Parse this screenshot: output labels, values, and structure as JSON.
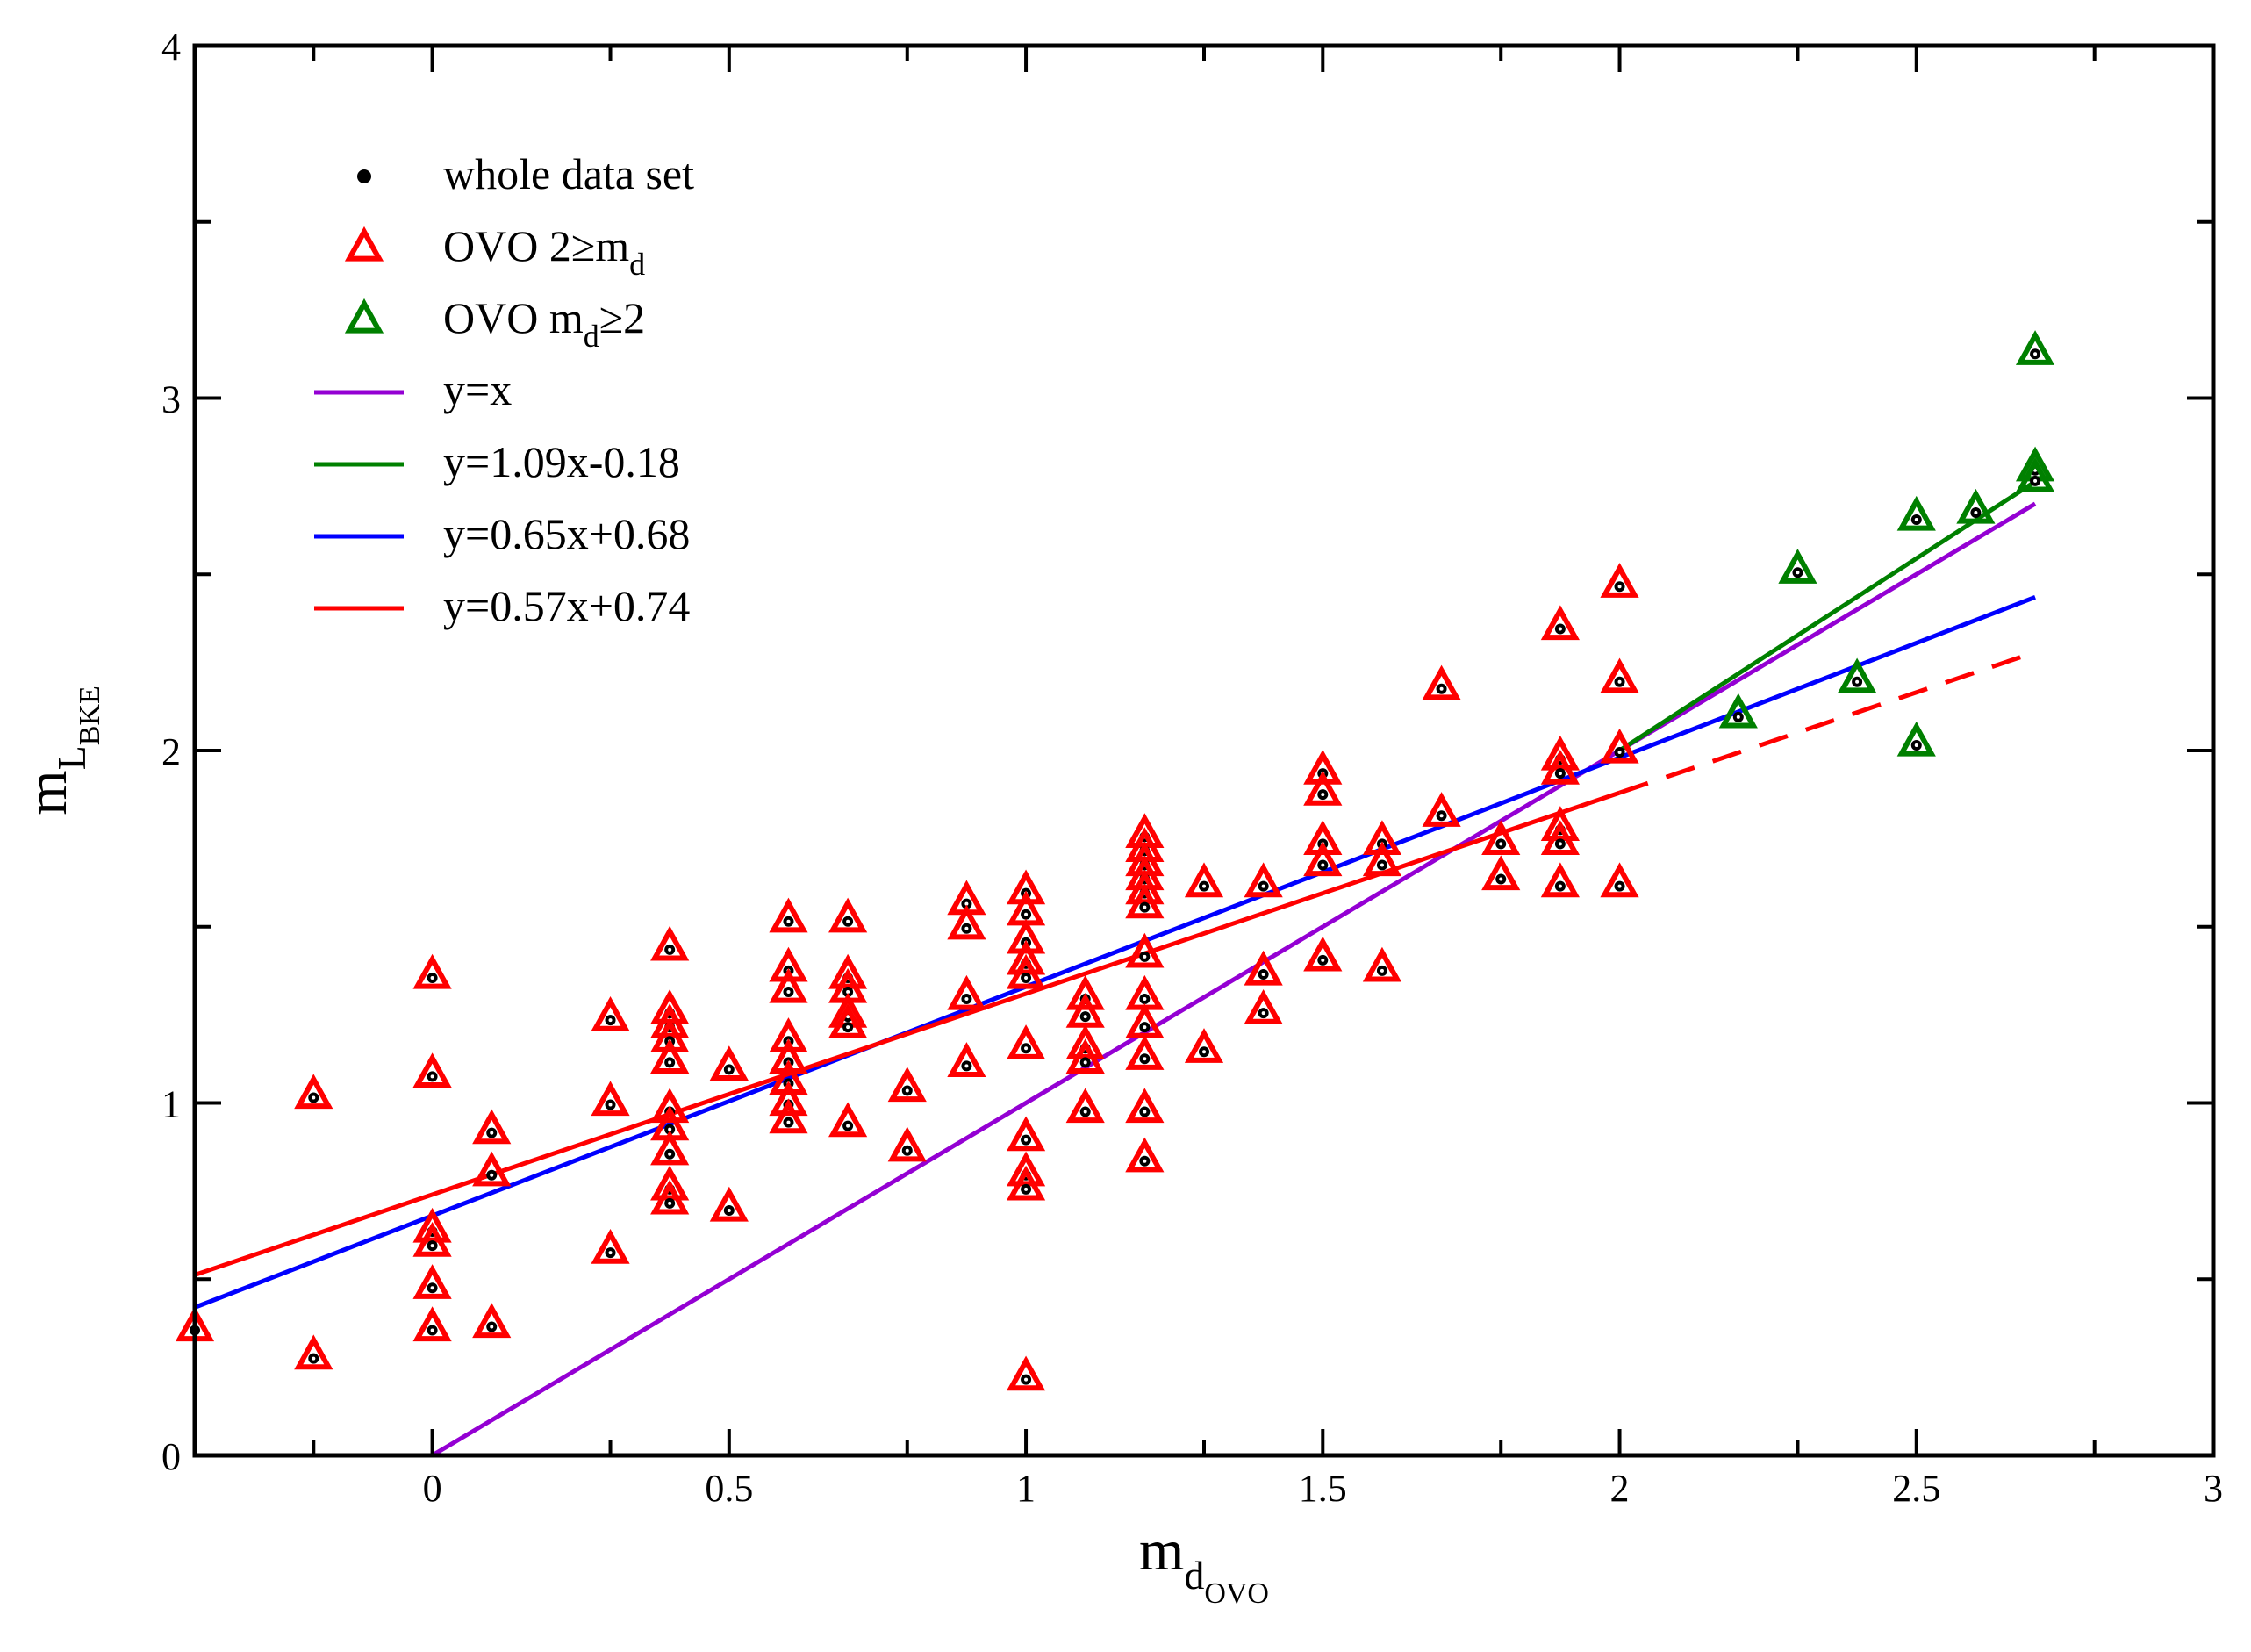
{
  "chart_data": {
    "type": "scatter",
    "title": "",
    "xlabel": {
      "base": "m",
      "sub": "d",
      "subsub": "OVO"
    },
    "ylabel": {
      "base": "m",
      "sub": "L",
      "subsub": "BKE"
    },
    "xlim": [
      -0.4,
      3.0
    ],
    "ylim": [
      0,
      4
    ],
    "x_ticks": [
      {
        "value": 0,
        "label": "0"
      },
      {
        "value": 0.5,
        "label": "0.5"
      },
      {
        "value": 1,
        "label": "1"
      },
      {
        "value": 1.5,
        "label": "1.5"
      },
      {
        "value": 2,
        "label": "2"
      },
      {
        "value": 2.5,
        "label": "2.5"
      },
      {
        "value": 3,
        "label": "3"
      }
    ],
    "x_minor_ticks": [
      -0.2,
      0.3,
      0.8,
      1.3,
      1.8,
      2.3,
      2.8
    ],
    "x_all_tick_step": 0.1,
    "y_ticks": [
      {
        "value": 0,
        "label": "0"
      },
      {
        "value": 1,
        "label": "1"
      },
      {
        "value": 2,
        "label": "2"
      },
      {
        "value": 3,
        "label": "3"
      },
      {
        "value": 4,
        "label": "4"
      }
    ],
    "y_minor_ticks": [
      0.5,
      1.5,
      2.5,
      3.5
    ],
    "grid": false,
    "legend_position": "top-left",
    "legend": [
      {
        "kind": "circle",
        "color": "#000000",
        "label": "whole data set"
      },
      {
        "kind": "triangle",
        "color": "#ff0000",
        "label": "OVO  2≥m",
        "sub": "d"
      },
      {
        "kind": "triangle",
        "color": "#008000",
        "label": "OVO  m",
        "sub": "d",
        "label_after": "≥2"
      },
      {
        "kind": "line",
        "color": "#9400d3",
        "label": "y=x"
      },
      {
        "kind": "line",
        "color": "#008000",
        "label": "y=1.09x-0.18"
      },
      {
        "kind": "line",
        "color": "#0000ff",
        "label": "y=0.65x+0.68"
      },
      {
        "kind": "line",
        "color": "#ff0000",
        "label": "y=0.57x+0.74"
      }
    ],
    "lines": [
      {
        "name": "y=x",
        "color": "#9400d3",
        "x_from": 0,
        "x_to": 2.7,
        "dashed": false
      },
      {
        "name": "y=1.09x-0.18",
        "color": "#008000",
        "x_from": 2.0,
        "x_to": 2.7,
        "dashed": false
      },
      {
        "name": "y=0.65x+0.68",
        "color": "#0000ff",
        "x_from": -0.4,
        "x_to": 2.7,
        "dashed": false
      },
      {
        "name": "y=0.57x+0.74",
        "color": "#ff0000",
        "x_from": -0.4,
        "x_to": 2.0,
        "dashed": false
      },
      {
        "name": "y=0.57x+0.74 (extrapolated)",
        "color": "#ff0000",
        "x_from": 2.0,
        "x_to": 2.7,
        "dashed": true
      }
    ],
    "series": [
      {
        "name": "OVO 2≥m_d",
        "marker": "triangle",
        "color": "#ff0000",
        "points": [
          [
            -0.4,
            0.36
          ],
          [
            -0.2,
            1.02
          ],
          [
            -0.2,
            0.28
          ],
          [
            0,
            1.36
          ],
          [
            0,
            1.08
          ],
          [
            0,
            0.64
          ],
          [
            0,
            0.6
          ],
          [
            0,
            0.48
          ],
          [
            0,
            0.36
          ],
          [
            0.1,
            0.92
          ],
          [
            0.1,
            0.8
          ],
          [
            0.1,
            0.37
          ],
          [
            0.3,
            1.24
          ],
          [
            0.3,
            1.0
          ],
          [
            0.3,
            0.58
          ],
          [
            0.4,
            1.44
          ],
          [
            0.4,
            1.26
          ],
          [
            0.4,
            1.22
          ],
          [
            0.4,
            1.18
          ],
          [
            0.4,
            1.12
          ],
          [
            0.4,
            0.98
          ],
          [
            0.4,
            0.93
          ],
          [
            0.4,
            0.86
          ],
          [
            0.4,
            0.76
          ],
          [
            0.4,
            0.72
          ],
          [
            0.5,
            1.1
          ],
          [
            0.5,
            0.7
          ],
          [
            0.6,
            1.52
          ],
          [
            0.6,
            1.38
          ],
          [
            0.6,
            1.32
          ],
          [
            0.6,
            1.18
          ],
          [
            0.6,
            1.12
          ],
          [
            0.6,
            1.06
          ],
          [
            0.6,
            1.0
          ],
          [
            0.6,
            0.95
          ],
          [
            0.7,
            1.52
          ],
          [
            0.7,
            1.36
          ],
          [
            0.7,
            1.32
          ],
          [
            0.7,
            1.25
          ],
          [
            0.7,
            1.22
          ],
          [
            0.7,
            0.94
          ],
          [
            0.8,
            1.04
          ],
          [
            0.8,
            0.87
          ],
          [
            0.9,
            1.57
          ],
          [
            0.9,
            1.5
          ],
          [
            0.9,
            1.3
          ],
          [
            0.9,
            1.11
          ],
          [
            1.0,
            1.6
          ],
          [
            1.0,
            1.54
          ],
          [
            1.0,
            1.46
          ],
          [
            1.0,
            1.4
          ],
          [
            1.0,
            1.36
          ],
          [
            1.0,
            1.16
          ],
          [
            1.0,
            0.9
          ],
          [
            1.0,
            0.8
          ],
          [
            1.0,
            0.76
          ],
          [
            1.0,
            0.22
          ],
          [
            1.1,
            1.3
          ],
          [
            1.1,
            1.25
          ],
          [
            1.1,
            1.16
          ],
          [
            1.1,
            1.12
          ],
          [
            1.1,
            0.98
          ],
          [
            1.2,
            1.76
          ],
          [
            1.2,
            1.72
          ],
          [
            1.2,
            1.68
          ],
          [
            1.2,
            1.64
          ],
          [
            1.2,
            1.6
          ],
          [
            1.2,
            1.56
          ],
          [
            1.2,
            1.42
          ],
          [
            1.2,
            1.3
          ],
          [
            1.2,
            1.22
          ],
          [
            1.2,
            1.13
          ],
          [
            1.2,
            0.98
          ],
          [
            1.2,
            0.84
          ],
          [
            1.3,
            1.62
          ],
          [
            1.3,
            1.15
          ],
          [
            1.4,
            1.62
          ],
          [
            1.4,
            1.37
          ],
          [
            1.4,
            1.26
          ],
          [
            1.5,
            1.94
          ],
          [
            1.5,
            1.88
          ],
          [
            1.5,
            1.74
          ],
          [
            1.5,
            1.68
          ],
          [
            1.5,
            1.41
          ],
          [
            1.6,
            1.74
          ],
          [
            1.6,
            1.68
          ],
          [
            1.6,
            1.38
          ],
          [
            1.7,
            2.18
          ],
          [
            1.7,
            1.82
          ],
          [
            1.8,
            1.74
          ],
          [
            1.8,
            1.64
          ],
          [
            1.9,
            2.35
          ],
          [
            1.9,
            1.98
          ],
          [
            1.9,
            1.94
          ],
          [
            1.9,
            1.78
          ],
          [
            1.9,
            1.74
          ],
          [
            1.9,
            1.62
          ],
          [
            2.0,
            2.47
          ],
          [
            2.0,
            2.2
          ],
          [
            2.0,
            2.0
          ],
          [
            2.0,
            1.62
          ]
        ]
      },
      {
        "name": "OVO m_d≥2",
        "marker": "triangle",
        "color": "#008000",
        "points": [
          [
            2.2,
            2.1
          ],
          [
            2.3,
            2.51
          ],
          [
            2.4,
            2.2
          ],
          [
            2.5,
            2.66
          ],
          [
            2.5,
            2.02
          ],
          [
            2.6,
            2.68
          ],
          [
            2.7,
            3.13
          ],
          [
            2.7,
            2.8
          ],
          [
            2.7,
            2.77
          ]
        ]
      }
    ]
  }
}
